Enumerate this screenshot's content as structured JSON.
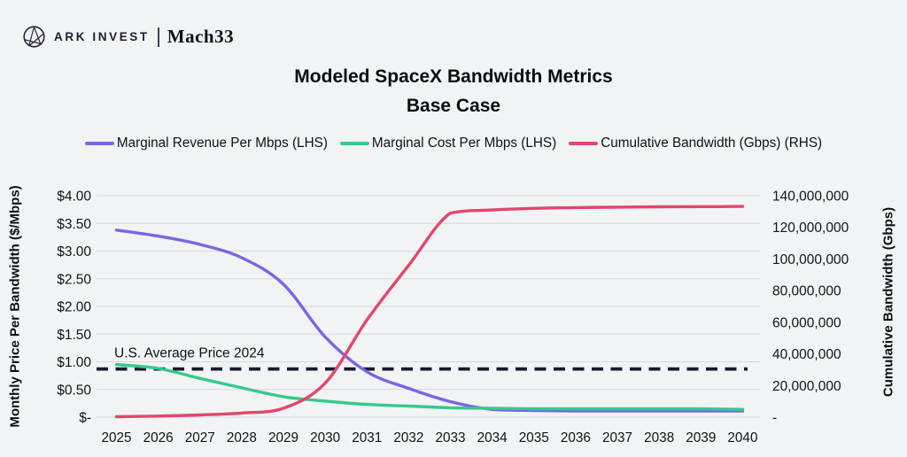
{
  "header": {
    "brand_left": "ARK INVEST",
    "brand_right": "Mach33",
    "logo_icon": "ark-compass-icon"
  },
  "chart_data": {
    "type": "line",
    "title": "Modeled SpaceX Bandwidth Metrics",
    "subtitle": "Base Case",
    "grid": true,
    "legend_position": "top",
    "background_color": "#f2f3f5",
    "x": [
      2025,
      2026,
      2027,
      2028,
      2029,
      2030,
      2031,
      2032,
      2033,
      2034,
      2035,
      2036,
      2037,
      2038,
      2039,
      2040
    ],
    "series": [
      {
        "name": "Marginal Revenue Per Mbps (LHS)",
        "axis": "left",
        "color": "#7c64e4",
        "values": [
          3.38,
          3.27,
          3.12,
          2.88,
          2.4,
          1.45,
          0.82,
          0.52,
          0.28,
          0.14,
          0.12,
          0.11,
          0.11,
          0.11,
          0.11,
          0.11
        ]
      },
      {
        "name": "Marginal Cost Per Mbps (LHS)",
        "axis": "left",
        "color": "#35c98e",
        "values": [
          0.95,
          0.88,
          0.7,
          0.53,
          0.37,
          0.29,
          0.23,
          0.2,
          0.17,
          0.16,
          0.15,
          0.15,
          0.15,
          0.15,
          0.15,
          0.14
        ]
      },
      {
        "name": "Cumulative Bandwidth (Gbps) (RHS)",
        "axis": "right",
        "color": "#e2476c",
        "values": [
          300000,
          700000,
          1400000,
          2600000,
          5600000,
          21500000,
          61500000,
          96000000,
          129000000,
          131000000,
          132000000,
          132500000,
          132800000,
          133000000,
          133100000,
          133200000
        ]
      }
    ],
    "left_axis": {
      "label": "Monthly Price Per Bandwidth ($/Mbps)",
      "min": 0,
      "max": 4,
      "ticks": [
        "$4.00",
        "$3.50",
        "$3.00",
        "$2.50",
        "$2.00",
        "$1.50",
        "$1.00",
        "$0.50",
        "$-"
      ]
    },
    "right_axis": {
      "label": "Cumulative Bandwidth (Gbps)",
      "min": 0,
      "max": 140000000,
      "ticks": [
        "140,000,000",
        "120,000,000",
        "100,000,000",
        "80,000,000",
        "60,000,000",
        "40,000,000",
        "20,000,000",
        "-"
      ]
    },
    "annotation": {
      "label": "U.S. Average Price 2024",
      "value": 0.87,
      "style": "dashed",
      "color": "#151a2c"
    }
  }
}
